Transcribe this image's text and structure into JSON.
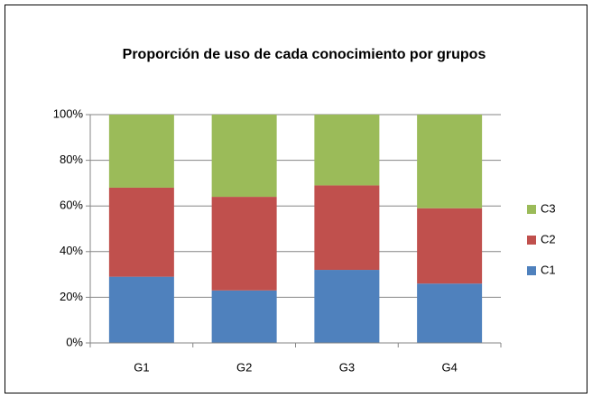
{
  "chart_data": {
    "type": "stacked_bar_100",
    "title": "Proporción de uso de cada conocimiento por grupos",
    "categories": [
      "G1",
      "G2",
      "G3",
      "G4"
    ],
    "series": [
      {
        "name": "C1",
        "color": "#4f81bd",
        "values": [
          29,
          23,
          32,
          26
        ]
      },
      {
        "name": "C2",
        "color": "#c0504d",
        "values": [
          39,
          41,
          37,
          33
        ]
      },
      {
        "name": "C3",
        "color": "#9bbb59",
        "values": [
          32,
          36,
          31,
          41
        ]
      }
    ],
    "ylim": [
      0,
      100
    ],
    "yticks": [
      {
        "value": 0,
        "label": "0%"
      },
      {
        "value": 20,
        "label": "20%"
      },
      {
        "value": 40,
        "label": "40%"
      },
      {
        "value": 60,
        "label": "60%"
      },
      {
        "value": 80,
        "label": "80%"
      },
      {
        "value": 100,
        "label": "100%"
      }
    ],
    "grid": true,
    "legend": "right"
  }
}
